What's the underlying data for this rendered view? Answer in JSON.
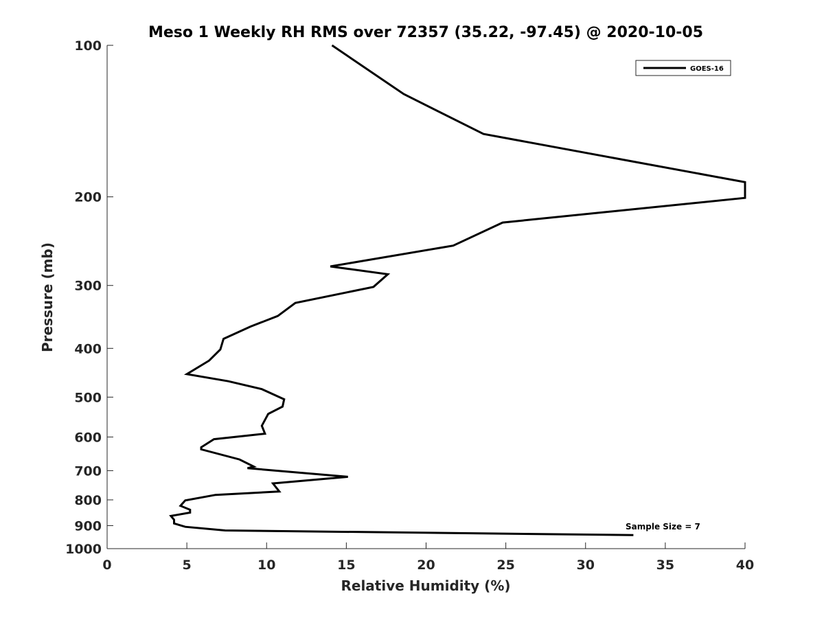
{
  "chart_data": {
    "type": "line",
    "title": "Meso 1 Weekly RH RMS over 72357 (35.22, -97.45) @ 2020-10-05",
    "xlabel": "Relative Humidity (%)",
    "ylabel": "Pressure (mb)",
    "xlim": [
      0,
      40
    ],
    "ylim": [
      100,
      1000
    ],
    "yscale": "log",
    "y_reversed": true,
    "x_ticks": [
      0,
      5,
      10,
      15,
      20,
      25,
      30,
      35,
      40
    ],
    "x_tick_labels": [
      "0",
      "5",
      "10",
      "15",
      "20",
      "25",
      "30",
      "35",
      "40"
    ],
    "y_ticks": [
      100,
      200,
      300,
      400,
      500,
      600,
      700,
      800,
      900,
      1000
    ],
    "y_tick_labels": [
      "100",
      "200",
      "300",
      "400",
      "500",
      "600",
      "700",
      "800",
      "900",
      "1000"
    ],
    "grid": false,
    "legend_position": "top-right",
    "annotation": "Sample Size = 7",
    "series": [
      {
        "name": "GOES-16",
        "color": "#000000",
        "points": [
          [
            14.1,
            100
          ],
          [
            18.6,
            125
          ],
          [
            23.6,
            150
          ],
          [
            40.0,
            187
          ],
          [
            40.0,
            201
          ],
          [
            24.8,
            225
          ],
          [
            21.7,
            250
          ],
          [
            14.0,
            275
          ],
          [
            17.6,
            285
          ],
          [
            16.7,
            302
          ],
          [
            11.8,
            325
          ],
          [
            10.7,
            345
          ],
          [
            9.0,
            362
          ],
          [
            7.3,
            383
          ],
          [
            7.1,
            402
          ],
          [
            6.4,
            423
          ],
          [
            5.0,
            450
          ],
          [
            7.6,
            465
          ],
          [
            9.7,
            482
          ],
          [
            11.1,
            505
          ],
          [
            11.0,
            522
          ],
          [
            10.1,
            540
          ],
          [
            9.7,
            570
          ],
          [
            9.9,
            591
          ],
          [
            6.7,
            606
          ],
          [
            5.9,
            629
          ],
          [
            5.9,
            635
          ],
          [
            8.3,
            665
          ],
          [
            9.2,
            687
          ],
          [
            8.8,
            692
          ],
          [
            15.1,
            720
          ],
          [
            10.4,
            742
          ],
          [
            10.8,
            770
          ],
          [
            6.8,
            782
          ],
          [
            4.9,
            802
          ],
          [
            4.6,
            822
          ],
          [
            5.2,
            837
          ],
          [
            5.2,
            848
          ],
          [
            4.0,
            861
          ],
          [
            4.2,
            876
          ],
          [
            4.2,
            891
          ],
          [
            4.9,
            905
          ],
          [
            7.4,
            920
          ],
          [
            33.0,
            940
          ]
        ]
      }
    ]
  }
}
